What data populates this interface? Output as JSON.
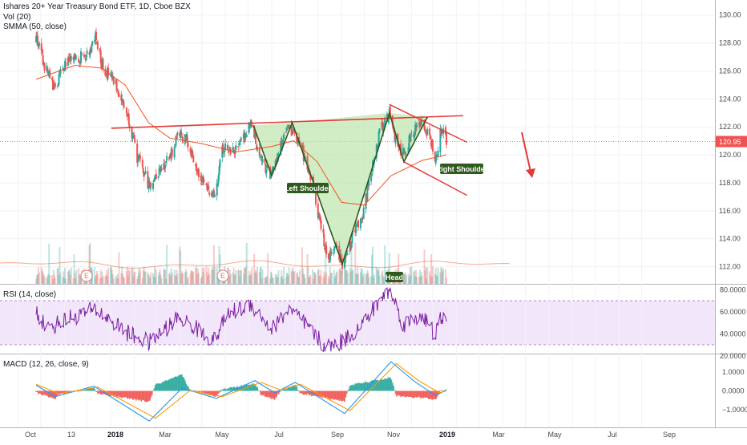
{
  "header": {
    "symbol_line": "Ishares 20+ Year Treasury Bond ETF, 1D, Cboe BZX",
    "vol_line": "Vol (20)",
    "smma_line": "SMMA (50, close)"
  },
  "rsi_panel": {
    "label": "RSI (14, close)",
    "ticks": [
      "80.0000",
      "60.0000",
      "40.0000",
      "20.0000"
    ]
  },
  "macd_panel": {
    "label": "MACD (12, 26, close, 9)",
    "ticks": [
      "1.0000",
      "0.0000",
      "−1.0000"
    ]
  },
  "price_axis": {
    "ticks": [
      "130.00",
      "128.00",
      "126.00",
      "124.00",
      "122.00",
      "120.00",
      "118.00",
      "116.00",
      "114.00",
      "112.00"
    ],
    "last_price": "120.95"
  },
  "time_axis": {
    "labels": [
      "Oct",
      "13",
      "2018",
      "Mar",
      "May",
      "Jul",
      "Sep",
      "Nov",
      "2019",
      "Mar",
      "May",
      "Jul",
      "Sep"
    ]
  },
  "annotations": {
    "left_shoulder": "Left Shoulder",
    "head": "Head",
    "right_shoulder": "Right Shoulder",
    "earnings_marker": "E"
  },
  "colors": {
    "up": "#26a69a",
    "down": "#ef5350",
    "smma": "#f4511e",
    "rsi": "#7b1fa2",
    "macd": "#2196f3",
    "signal": "#ff9800",
    "neckline": "#c62828",
    "pattern_fill": "#b9e4a8",
    "label_bg": "#2e5a1c"
  },
  "chart_data": [
    {
      "type": "candlestick",
      "title": "Ishares 20+ Year Treasury Bond ETF, 1D, Cboe BZX",
      "x_range": [
        "2017-09-25",
        "2019-09-30"
      ],
      "ylim": [
        111,
        130.5
      ],
      "anchors": [
        {
          "x": "2017-09-25",
          "y": 128.4
        },
        {
          "x": "2017-10-05",
          "y": 126.5
        },
        {
          "x": "2017-10-20",
          "y": 124.6
        },
        {
          "x": "2017-11-01",
          "y": 126.5
        },
        {
          "x": "2017-11-15",
          "y": 126.8
        },
        {
          "x": "2017-12-01",
          "y": 127.2
        },
        {
          "x": "2017-12-12",
          "y": 128.4
        },
        {
          "x": "2017-12-20",
          "y": 126.5
        },
        {
          "x": "2018-01-10",
          "y": 124.8
        },
        {
          "x": "2018-01-25",
          "y": 122.6
        },
        {
          "x": "2018-02-05",
          "y": 119.8
        },
        {
          "x": "2018-02-21",
          "y": 117.8
        },
        {
          "x": "2018-03-05",
          "y": 118.8
        },
        {
          "x": "2018-03-20",
          "y": 119.8
        },
        {
          "x": "2018-04-01",
          "y": 121.5
        },
        {
          "x": "2018-04-12",
          "y": 121.0
        },
        {
          "x": "2018-04-25",
          "y": 119.0
        },
        {
          "x": "2018-05-17",
          "y": 116.9
        },
        {
          "x": "2018-05-29",
          "y": 120.6
        },
        {
          "x": "2018-06-10",
          "y": 120.2
        },
        {
          "x": "2018-06-25",
          "y": 121.2
        },
        {
          "x": "2018-07-05",
          "y": 122.1
        },
        {
          "x": "2018-07-20",
          "y": 119.4
        },
        {
          "x": "2018-08-01",
          "y": 118.5
        },
        {
          "x": "2018-08-15",
          "y": 121.0
        },
        {
          "x": "2018-08-25",
          "y": 122.0
        },
        {
          "x": "2018-09-10",
          "y": 120.3
        },
        {
          "x": "2018-09-25",
          "y": 117.8
        },
        {
          "x": "2018-10-05",
          "y": 114.5
        },
        {
          "x": "2018-10-15",
          "y": 112.8
        },
        {
          "x": "2018-10-25",
          "y": 113.6
        },
        {
          "x": "2018-11-02",
          "y": 112.2
        },
        {
          "x": "2018-11-15",
          "y": 114.2
        },
        {
          "x": "2018-11-28",
          "y": 115.6
        },
        {
          "x": "2018-12-10",
          "y": 118.6
        },
        {
          "x": "2018-12-21",
          "y": 121.6
        },
        {
          "x": "2019-01-03",
          "y": 123.0
        },
        {
          "x": "2019-01-10",
          "y": 121.2
        },
        {
          "x": "2019-01-22",
          "y": 120.0
        },
        {
          "x": "2019-02-01",
          "y": 121.5
        },
        {
          "x": "2019-02-15",
          "y": 122.2
        },
        {
          "x": "2019-02-28",
          "y": 120.8
        },
        {
          "x": "2019-03-04",
          "y": 119.2
        },
        {
          "x": "2019-03-12",
          "y": 121.8
        },
        {
          "x": "2019-03-19",
          "y": 120.95
        }
      ],
      "series": [
        {
          "name": "SMMA (50, close)",
          "points": [
            {
              "x": "2017-09-25",
              "y": 125.4
            },
            {
              "x": "2017-11-15",
              "y": 126.4
            },
            {
              "x": "2017-12-20",
              "y": 126.2
            },
            {
              "x": "2018-01-20",
              "y": 125.0
            },
            {
              "x": "2018-02-20",
              "y": 122.3
            },
            {
              "x": "2018-03-20",
              "y": 121.2
            },
            {
              "x": "2018-05-01",
              "y": 120.8
            },
            {
              "x": "2018-06-15",
              "y": 120.2
            },
            {
              "x": "2018-08-01",
              "y": 120.6
            },
            {
              "x": "2018-08-30",
              "y": 121.0
            },
            {
              "x": "2018-09-30",
              "y": 119.5
            },
            {
              "x": "2018-11-01",
              "y": 116.6
            },
            {
              "x": "2018-12-01",
              "y": 116.4
            },
            {
              "x": "2019-01-05",
              "y": 118.5
            },
            {
              "x": "2019-02-15",
              "y": 119.6
            },
            {
              "x": "2019-03-19",
              "y": 120.0
            }
          ]
        }
      ],
      "overlays": {
        "neckline": [
          {
            "x": "2018-01-02",
            "y": 121.9
          },
          {
            "x": "2019-04-10",
            "y": 122.8
          }
        ],
        "channel_upper": [
          {
            "x": "2019-01-03",
            "y": 123.6
          },
          {
            "x": "2019-04-15",
            "y": 120.9
          }
        ],
        "channel_lower": [
          {
            "x": "2019-01-22",
            "y": 119.5
          },
          {
            "x": "2019-04-15",
            "y": 117.1
          }
        ],
        "pattern_polyline": [
          {
            "x": "2018-07-08",
            "y": 122.1
          },
          {
            "x": "2018-08-01",
            "y": 118.5
          },
          {
            "x": "2018-08-28",
            "y": 122.3
          },
          {
            "x": "2018-11-02",
            "y": 112.2
          },
          {
            "x": "2019-01-03",
            "y": 123.0
          },
          {
            "x": "2019-01-22",
            "y": 119.5
          },
          {
            "x": "2019-02-22",
            "y": 122.7
          }
        ]
      },
      "volume_note": "per-bar volume not labeled"
    },
    {
      "type": "line",
      "title": "RSI (14, close)",
      "ylim": [
        20,
        85
      ],
      "anchors": [
        {
          "x": "2017-09-25",
          "y": 60
        },
        {
          "x": "2017-10-10",
          "y": 45
        },
        {
          "x": "2017-11-10",
          "y": 55
        },
        {
          "x": "2017-12-12",
          "y": 62
        },
        {
          "x": "2018-01-25",
          "y": 40
        },
        {
          "x": "2018-02-21",
          "y": 32
        },
        {
          "x": "2018-04-01",
          "y": 55
        },
        {
          "x": "2018-05-17",
          "y": 34
        },
        {
          "x": "2018-06-05",
          "y": 58
        },
        {
          "x": "2018-07-05",
          "y": 67
        },
        {
          "x": "2018-08-01",
          "y": 44
        },
        {
          "x": "2018-08-25",
          "y": 63
        },
        {
          "x": "2018-09-25",
          "y": 40
        },
        {
          "x": "2018-10-12",
          "y": 27
        },
        {
          "x": "2018-11-02",
          "y": 33
        },
        {
          "x": "2018-11-28",
          "y": 48
        },
        {
          "x": "2018-12-21",
          "y": 70
        },
        {
          "x": "2019-01-03",
          "y": 80
        },
        {
          "x": "2019-01-22",
          "y": 48
        },
        {
          "x": "2019-02-15",
          "y": 58
        },
        {
          "x": "2019-03-04",
          "y": 38
        },
        {
          "x": "2019-03-12",
          "y": 55
        },
        {
          "x": "2019-03-19",
          "y": 50
        }
      ],
      "band": [
        30,
        70
      ]
    },
    {
      "type": "line",
      "title": "MACD (12, 26, close, 9)",
      "ylim": [
        -1.8,
        1.9
      ],
      "series": [
        {
          "name": "MACD",
          "points": [
            {
              "x": "2017-09-25",
              "y": 0.3
            },
            {
              "x": "2017-10-20",
              "y": -0.3
            },
            {
              "x": "2017-12-10",
              "y": 0.25
            },
            {
              "x": "2018-02-21",
              "y": -1.6
            },
            {
              "x": "2018-04-05",
              "y": 0.15
            },
            {
              "x": "2018-05-20",
              "y": -0.4
            },
            {
              "x": "2018-07-10",
              "y": 0.55
            },
            {
              "x": "2018-08-05",
              "y": -0.1
            },
            {
              "x": "2018-09-01",
              "y": 0.45
            },
            {
              "x": "2018-11-05",
              "y": -1.2
            },
            {
              "x": "2019-01-05",
              "y": 1.55
            },
            {
              "x": "2019-02-05",
              "y": 0.5
            },
            {
              "x": "2019-03-05",
              "y": -0.25
            },
            {
              "x": "2019-03-19",
              "y": 0.05
            }
          ]
        },
        {
          "name": "Signal",
          "points": [
            {
              "x": "2017-09-25",
              "y": 0.35
            },
            {
              "x": "2017-10-25",
              "y": -0.15
            },
            {
              "x": "2017-12-15",
              "y": 0.2
            },
            {
              "x": "2018-03-01",
              "y": -1.45
            },
            {
              "x": "2018-04-15",
              "y": 0.0
            },
            {
              "x": "2018-05-28",
              "y": -0.3
            },
            {
              "x": "2018-07-18",
              "y": 0.45
            },
            {
              "x": "2018-08-12",
              "y": 0.05
            },
            {
              "x": "2018-09-08",
              "y": 0.35
            },
            {
              "x": "2018-11-12",
              "y": -1.05
            },
            {
              "x": "2019-01-12",
              "y": 1.45
            },
            {
              "x": "2019-02-10",
              "y": 0.55
            },
            {
              "x": "2019-03-10",
              "y": -0.1
            },
            {
              "x": "2019-03-19",
              "y": 0.0
            }
          ]
        }
      ]
    }
  ]
}
